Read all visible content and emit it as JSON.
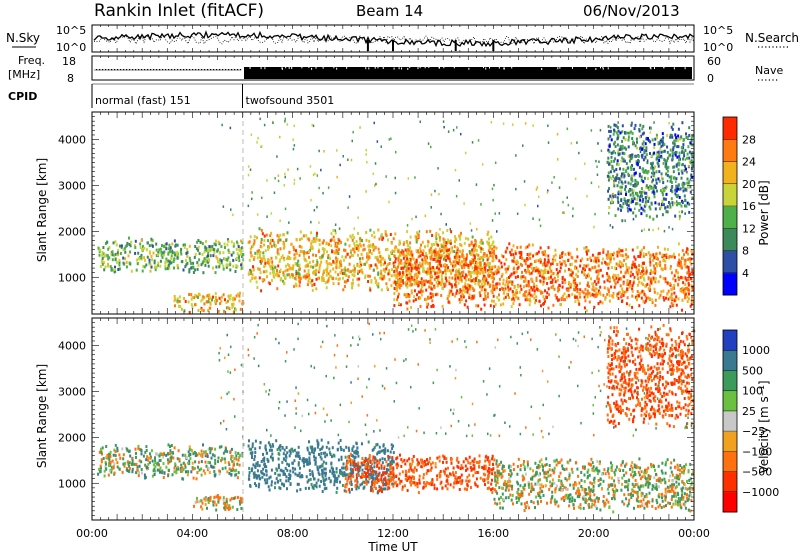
{
  "header": {
    "title": "Rankin Inlet (fitACF)",
    "beam": "Beam 14",
    "date": "06/Nov/2013"
  },
  "top_panels": {
    "nsky_label": "N.Sky",
    "nsky_ticks": [
      "10^5",
      "10^0"
    ],
    "nsearch_label": "N.Search",
    "nsearch_ticks": [
      "10^5",
      "10^0"
    ],
    "freq_label_line1": "Freq.",
    "freq_label_line2": "[MHz]",
    "freq_ticks": [
      "18",
      "8"
    ],
    "nave_label": "Nave",
    "nave_ticks": [
      "60",
      "0"
    ],
    "cpid_label": "CPID",
    "cpid_modes": [
      {
        "name": "normal (fast) 151",
        "start_hour": 0,
        "end_hour": 6
      },
      {
        "name": "twofsound 3501",
        "start_hour": 6,
        "end_hour": 24
      }
    ]
  },
  "chart_data": [
    {
      "type": "heatmap",
      "title": "",
      "xlabel": "",
      "ylabel": "Slant Range [km]",
      "xlim": [
        0,
        24
      ],
      "ylim": [
        200,
        4600
      ],
      "yticks": [
        "1000",
        "2000",
        "3000",
        "4000"
      ],
      "colorbar_label": "Power [dB]",
      "colorbar_ticks": [
        "4",
        "8",
        "12",
        "16",
        "20",
        "24",
        "28"
      ],
      "colorbar_colors": [
        "#0000ff",
        "#2e4fa6",
        "#3c8a5c",
        "#4db048",
        "#c8d43a",
        "#f2b21e",
        "#ff7a10",
        "#ff2a00"
      ],
      "features": [
        {
          "start_hour": 0.2,
          "end_hour": 6.0,
          "range_min": 1100,
          "range_max": 1900,
          "value": 16
        },
        {
          "start_hour": 3.2,
          "end_hour": 6.0,
          "range_min": 250,
          "range_max": 700,
          "value": 24
        },
        {
          "start_hour": 6.2,
          "end_hour": 16.0,
          "range_min": 700,
          "range_max": 2100,
          "value": 24
        },
        {
          "start_hour": 12.0,
          "end_hour": 24.0,
          "range_min": 300,
          "range_max": 1800,
          "value": 28
        },
        {
          "start_hour": 20.5,
          "end_hour": 24.0,
          "range_min": 2200,
          "range_max": 4500,
          "value": 12
        }
      ]
    },
    {
      "type": "heatmap",
      "title": "",
      "xlabel": "Time UT",
      "ylabel": "Slant Range [km]",
      "xlim": [
        0,
        24
      ],
      "ylim": [
        200,
        4600
      ],
      "xticks": [
        "00:00",
        "04:00",
        "08:00",
        "12:00",
        "16:00",
        "20:00",
        "00:00"
      ],
      "yticks": [
        "1000",
        "2000",
        "3000",
        "4000"
      ],
      "colorbar_label": "Velocity [m s⁻¹]",
      "colorbar_ticks": [
        "1000",
        "500",
        "100",
        "25",
        "−25",
        "−100",
        "−500",
        "−1000"
      ],
      "colorbar_colors": [
        "#2040c0",
        "#3a7a90",
        "#3c9a5a",
        "#6cc040",
        "#c8c8c8",
        "#f2a020",
        "#ff7010",
        "#ff3000",
        "#ff0000"
      ],
      "features": [
        {
          "start_hour": 0.2,
          "end_hour": 6.0,
          "range_min": 1100,
          "range_max": 1900,
          "value": 100
        },
        {
          "start_hour": 4.0,
          "end_hour": 6.0,
          "range_min": 400,
          "range_max": 800,
          "value": 0
        },
        {
          "start_hour": 6.2,
          "end_hour": 12.0,
          "range_min": 800,
          "range_max": 2000,
          "value": 500
        },
        {
          "start_hour": 10.0,
          "end_hour": 16.0,
          "range_min": 800,
          "range_max": 1700,
          "value": -300
        },
        {
          "start_hour": 16.0,
          "end_hour": 24.0,
          "range_min": 400,
          "range_max": 1600,
          "value": 50
        },
        {
          "start_hour": 20.5,
          "end_hour": 24.0,
          "range_min": 2200,
          "range_max": 4500,
          "value": -300
        }
      ]
    }
  ]
}
